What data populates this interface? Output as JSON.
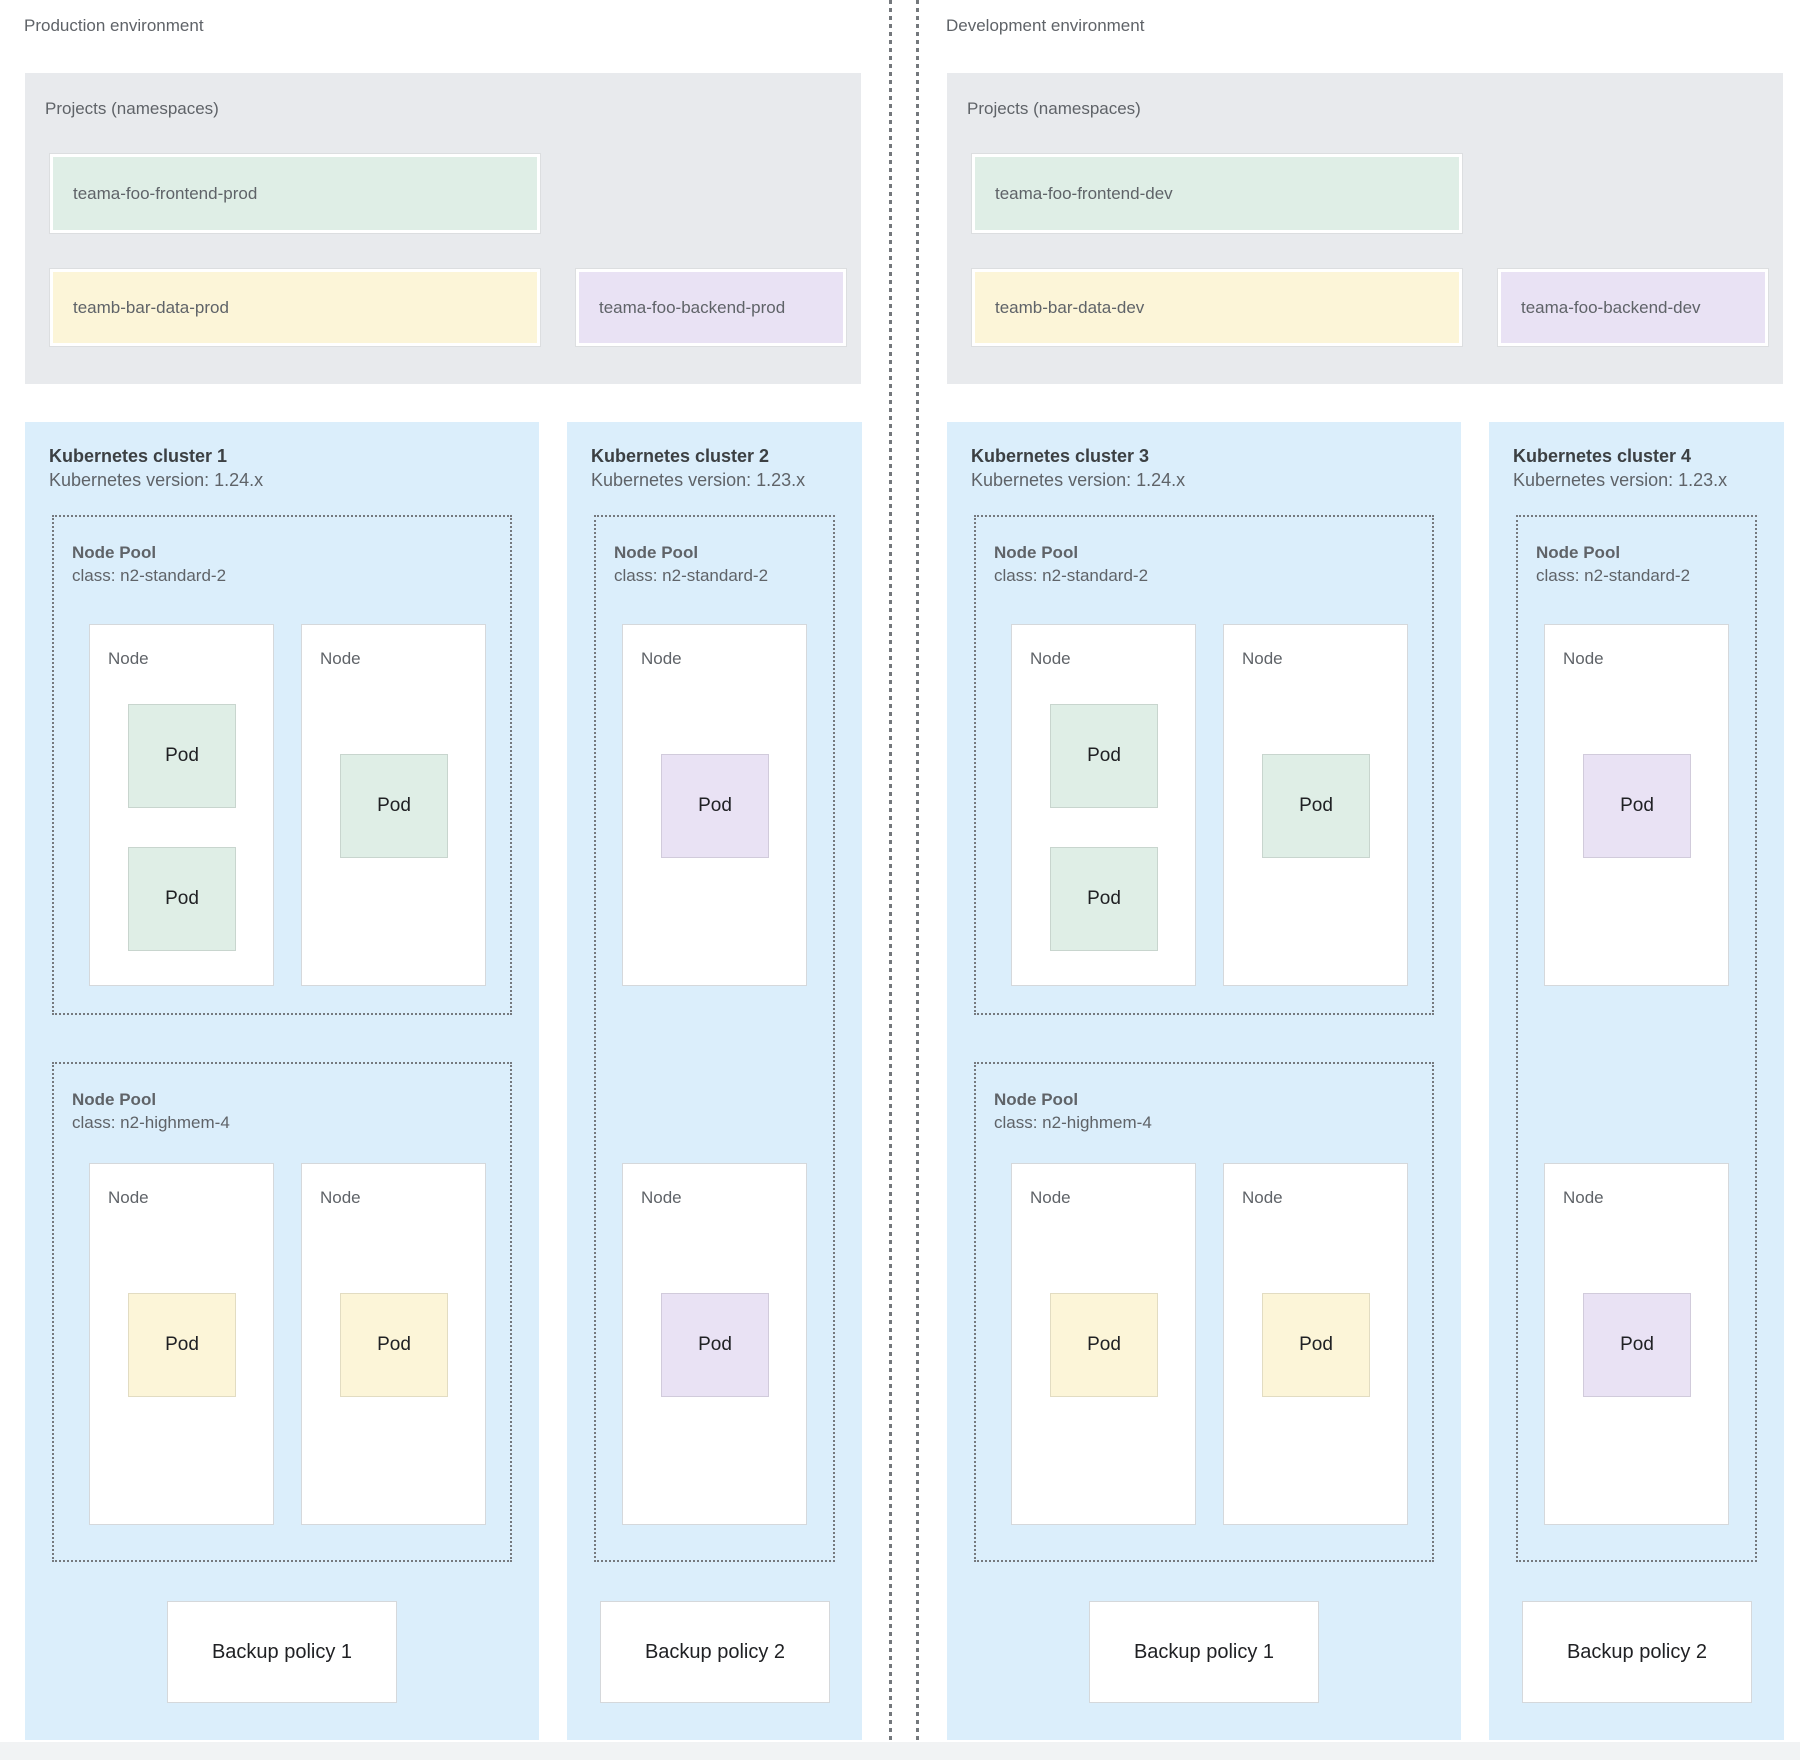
{
  "colors": {
    "cluster_background": "#dbeefb",
    "projects_panel_background": "#e8eaed",
    "namespace_green": "#dfeee6",
    "namespace_yellow": "#fcf5d8",
    "namespace_purple": "#e9e2f4",
    "dotted_border": "#75797e",
    "heading_text": "#3c4043",
    "body_text": "#5f6368"
  },
  "environments": [
    {
      "id": "production",
      "label": "Production environment",
      "projects": {
        "title": "Projects (namespaces)",
        "namespaces": [
          {
            "label": "teama-foo-frontend-prod",
            "color": "green"
          },
          {
            "label": "teamb-bar-data-prod",
            "color": "yellow"
          },
          {
            "label": "teama-foo-backend-prod",
            "color": "purple"
          }
        ]
      },
      "clusters": [
        {
          "title": "Kubernetes cluster 1",
          "version": "Kubernetes version: 1.24.x",
          "size": "wide",
          "pools": [
            {
              "name": "Node Pool",
              "class_label": "class: n2-standard-2",
              "nodes": [
                {
                  "label": "Node",
                  "pods": [
                    {
                      "label": "Pod",
                      "color": "green"
                    },
                    {
                      "label": "Pod",
                      "color": "green"
                    }
                  ]
                },
                {
                  "label": "Node",
                  "pods": [
                    {
                      "label": "Pod",
                      "color": "green"
                    }
                  ]
                }
              ]
            },
            {
              "name": "Node Pool",
              "class_label": "class: n2-highmem-4",
              "nodes": [
                {
                  "label": "Node",
                  "pods": [
                    {
                      "label": "Pod",
                      "color": "yellow"
                    }
                  ]
                },
                {
                  "label": "Node",
                  "pods": [
                    {
                      "label": "Pod",
                      "color": "yellow"
                    }
                  ]
                }
              ]
            }
          ],
          "backup": "Backup policy 1"
        },
        {
          "title": "Kubernetes cluster 2",
          "version": "Kubernetes version: 1.23.x",
          "size": "narrow",
          "pools": [
            {
              "name": "Node Pool",
              "class_label": "class: n2-standard-2",
              "nodes": [
                {
                  "label": "Node",
                  "pods": [
                    {
                      "label": "Pod",
                      "color": "purple"
                    }
                  ]
                },
                {
                  "label": "Node",
                  "pods": [
                    {
                      "label": "Pod",
                      "color": "purple"
                    }
                  ]
                }
              ]
            }
          ],
          "backup": "Backup policy 2"
        }
      ]
    },
    {
      "id": "development",
      "label": "Development environment",
      "projects": {
        "title": "Projects (namespaces)",
        "namespaces": [
          {
            "label": "teama-foo-frontend-dev",
            "color": "green"
          },
          {
            "label": "teamb-bar-data-dev",
            "color": "yellow"
          },
          {
            "label": "teama-foo-backend-dev",
            "color": "purple"
          }
        ]
      },
      "clusters": [
        {
          "title": "Kubernetes cluster 3",
          "version": "Kubernetes version: 1.24.x",
          "size": "wide",
          "pools": [
            {
              "name": "Node Pool",
              "class_label": "class: n2-standard-2",
              "nodes": [
                {
                  "label": "Node",
                  "pods": [
                    {
                      "label": "Pod",
                      "color": "green"
                    },
                    {
                      "label": "Pod",
                      "color": "green"
                    }
                  ]
                },
                {
                  "label": "Node",
                  "pods": [
                    {
                      "label": "Pod",
                      "color": "green"
                    }
                  ]
                }
              ]
            },
            {
              "name": "Node Pool",
              "class_label": "class: n2-highmem-4",
              "nodes": [
                {
                  "label": "Node",
                  "pods": [
                    {
                      "label": "Pod",
                      "color": "yellow"
                    }
                  ]
                },
                {
                  "label": "Node",
                  "pods": [
                    {
                      "label": "Pod",
                      "color": "yellow"
                    }
                  ]
                }
              ]
            }
          ],
          "backup": "Backup policy 1"
        },
        {
          "title": "Kubernetes cluster 4",
          "version": "Kubernetes version: 1.23.x",
          "size": "narrow",
          "pools": [
            {
              "name": "Node Pool",
              "class_label": "class: n2-standard-2",
              "nodes": [
                {
                  "label": "Node",
                  "pods": [
                    {
                      "label": "Pod",
                      "color": "purple"
                    }
                  ]
                },
                {
                  "label": "Node",
                  "pods": [
                    {
                      "label": "Pod",
                      "color": "purple"
                    }
                  ]
                }
              ]
            }
          ],
          "backup": "Backup policy 2"
        }
      ]
    }
  ]
}
